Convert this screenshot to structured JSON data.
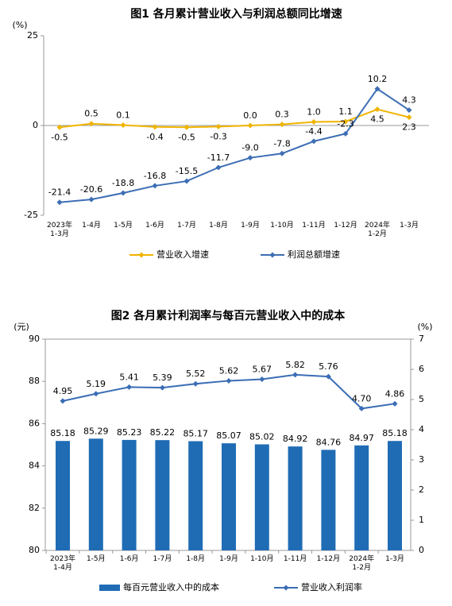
{
  "chart_data": [
    {
      "type": "line",
      "title": "图1  各月累计营业收入与利润总额同比增速",
      "ylabel": "(%)",
      "categories": [
        "2023年\n1-3月",
        "1-4月",
        "1-5月",
        "1-6月",
        "1-7月",
        "1-8月",
        "1-9月",
        "1-10月",
        "1-11月",
        "1-12月",
        "2024年\n1-2月",
        "1-3月"
      ],
      "series": [
        {
          "name": "营业收入增速",
          "color": "#f0b400",
          "values": [
            -0.5,
            0.5,
            0.1,
            -0.4,
            -0.5,
            -0.3,
            0.0,
            0.3,
            1.0,
            1.1,
            4.5,
            2.3
          ],
          "value_labels": [
            "-0.5",
            "0.5",
            "0.1",
            "-0.4",
            "-0.5",
            "-0.3",
            "0.0",
            "0.3",
            "1.0",
            "1.1",
            "4.5",
            "2.3"
          ]
        },
        {
          "name": "利润总额增速",
          "color": "#3d6eb4",
          "values": [
            -21.4,
            -20.6,
            -18.8,
            -16.8,
            -15.5,
            -11.7,
            -9.0,
            -7.8,
            -4.4,
            -2.3,
            10.2,
            4.3
          ],
          "value_labels": [
            "-21.4",
            "-20.6",
            "-18.8",
            "-16.8",
            "-15.5",
            "-11.7",
            "-9.0",
            "-7.8",
            "-4.4",
            "-2.3",
            "10.2",
            "4.3"
          ]
        }
      ],
      "ylim": [
        -25,
        25
      ],
      "yticks": [
        -25,
        0,
        25
      ],
      "grid": false,
      "legend": "bottom"
    },
    {
      "type": "bar",
      "title": "图2  各月累计利润率与每百元营业收入中的成本",
      "ylabel": "(元)",
      "y2label": "(%)",
      "categories": [
        "2023年\n1-4月",
        "1-5月",
        "1-6月",
        "1-7月",
        "1-8月",
        "1-9月",
        "1-10月",
        "1-11月",
        "1-12月",
        "2024年\n1-2月",
        "1-3月"
      ],
      "series": [
        {
          "name": "每百元营业收入中的成本",
          "type": "bar",
          "color": "#1f6cb5",
          "values": [
            85.18,
            85.29,
            85.23,
            85.22,
            85.17,
            85.07,
            85.02,
            84.92,
            84.76,
            84.97,
            85.18
          ]
        },
        {
          "name": "营业收入利润率",
          "type": "line",
          "axis": "y2",
          "color": "#3a6db5",
          "values": [
            4.95,
            5.19,
            5.41,
            5.39,
            5.52,
            5.62,
            5.67,
            5.82,
            5.76,
            4.7,
            4.86
          ],
          "value_labels": [
            "4.95",
            "5.19",
            "5.41",
            "5.39",
            "5.52",
            "5.62",
            "5.67",
            "5.82",
            "5.76",
            "4.70",
            "4.86"
          ]
        }
      ],
      "ylim": [
        80,
        90
      ],
      "yticks": [
        80,
        82,
        84,
        86,
        88,
        90
      ],
      "y2lim": [
        0,
        7
      ],
      "y2ticks": [
        0,
        1,
        2,
        3,
        4,
        5,
        6,
        7
      ],
      "grid": false,
      "legend": "bottom"
    }
  ]
}
